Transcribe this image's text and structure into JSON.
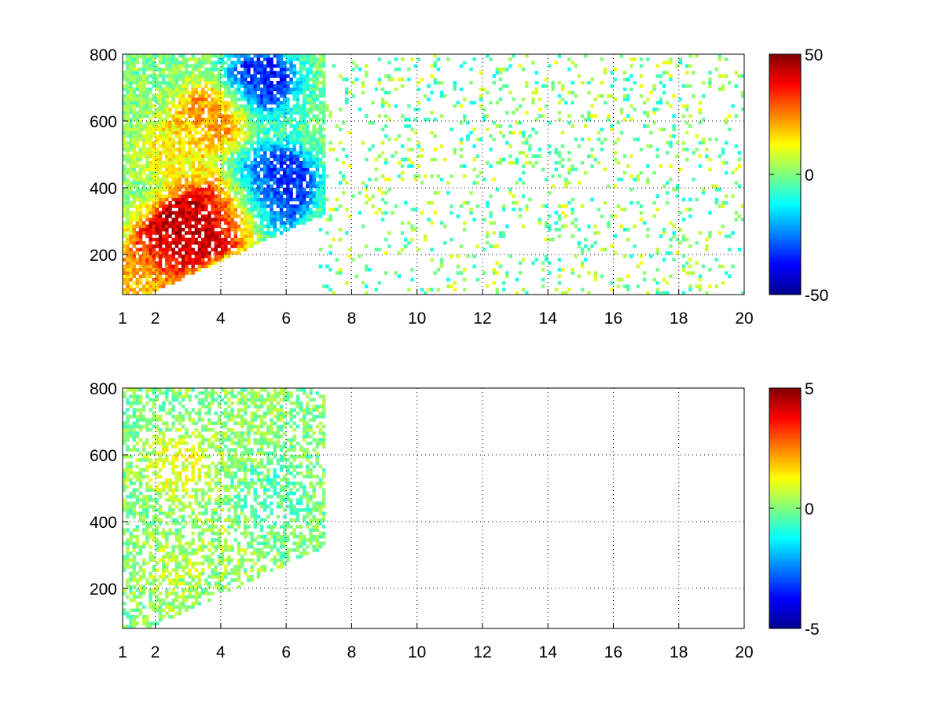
{
  "chart_data": [
    {
      "type": "heatmap",
      "title": "",
      "xlabel": "",
      "ylabel": "",
      "xlim": [
        1,
        20
      ],
      "ylim": [
        80,
        800
      ],
      "x_ticks": [
        1,
        2,
        4,
        6,
        8,
        10,
        12,
        14,
        16,
        18,
        20
      ],
      "y_ticks": [
        200,
        400,
        600,
        800
      ],
      "grid": true,
      "colormap": "jet",
      "colorbar": {
        "min": -50,
        "max": 50,
        "ticks": [
          -50,
          0,
          50
        ]
      },
      "clusters": [
        {
          "x": 2.5,
          "y": 240,
          "value": 42
        },
        {
          "x": 3.5,
          "y": 300,
          "value": 45
        },
        {
          "x": 4.5,
          "y": 330,
          "value": 35
        },
        {
          "x": 5.3,
          "y": 360,
          "value": -40
        },
        {
          "x": 5.8,
          "y": 430,
          "value": -30
        },
        {
          "x": 5.2,
          "y": 720,
          "value": -35
        },
        {
          "x": 3.8,
          "y": 620,
          "value": 25
        },
        {
          "x": 2.6,
          "y": 520,
          "value": 12
        },
        {
          "x": 1.5,
          "y": 130,
          "value": 18
        }
      ]
    },
    {
      "type": "heatmap",
      "title": "",
      "xlabel": "",
      "ylabel": "",
      "xlim": [
        1,
        20
      ],
      "ylim": [
        80,
        800
      ],
      "x_ticks": [
        1,
        2,
        4,
        6,
        8,
        10,
        12,
        14,
        16,
        18,
        20
      ],
      "y_ticks": [
        200,
        400,
        600,
        800
      ],
      "grid": true,
      "colormap": "jet",
      "colorbar": {
        "min": -5,
        "max": 5,
        "ticks": [
          -5,
          0,
          5
        ]
      },
      "clusters": [
        {
          "x": 2.5,
          "y": 250,
          "value": 0.5
        },
        {
          "x": 4.5,
          "y": 350,
          "value": 0.3
        },
        {
          "x": 5.5,
          "y": 450,
          "value": -0.5
        },
        {
          "x": 4.5,
          "y": 700,
          "value": 0.2
        },
        {
          "x": 2.8,
          "y": 560,
          "value": 1.0
        }
      ]
    }
  ]
}
